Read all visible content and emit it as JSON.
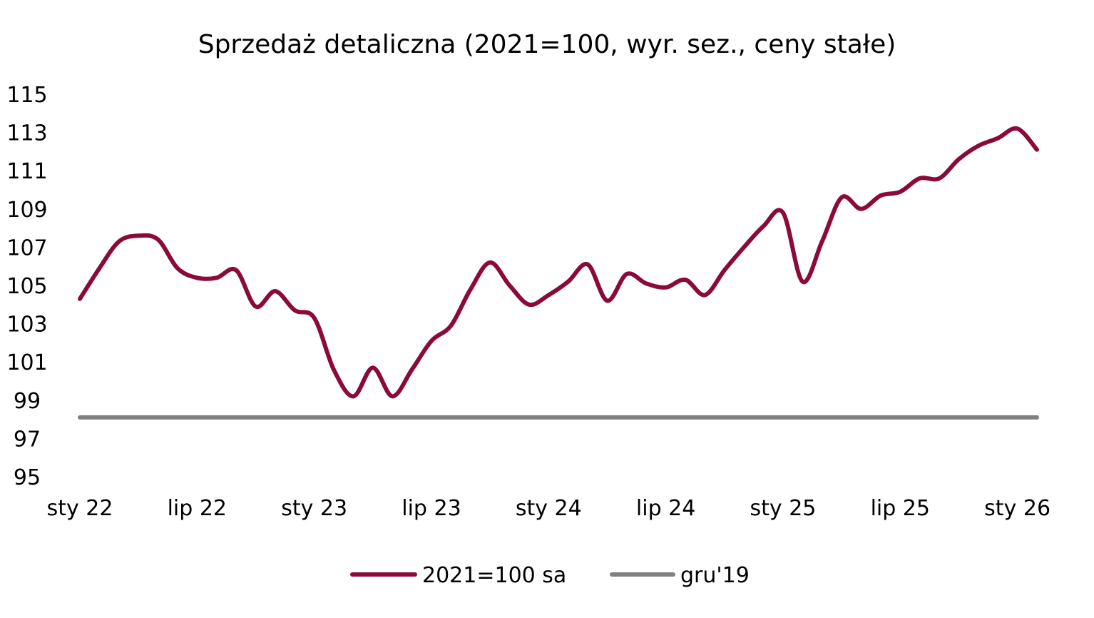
{
  "chart_data": {
    "type": "line",
    "title": "Sprzedaż detaliczna (2021=100, wyr. sez., ceny stałe)",
    "xlabel": "",
    "ylabel": "",
    "ylim": [
      95,
      115
    ],
    "yticks": [
      "115",
      "113",
      "111",
      "109",
      "107",
      "105",
      "103",
      "101",
      "99",
      "97",
      "95"
    ],
    "xticks": [
      "sty 22",
      "lip 22",
      "sty 23",
      "lip 23",
      "sty 24",
      "lip 24",
      "sty 25",
      "lip 25",
      "sty 26"
    ],
    "grid": false,
    "legend_position": "bottom",
    "x": [
      "2022-01",
      "2022-02",
      "2022-03",
      "2022-04",
      "2022-05",
      "2022-06",
      "2022-07",
      "2022-08",
      "2022-09",
      "2022-10",
      "2022-11",
      "2022-12",
      "2023-01",
      "2023-02",
      "2023-03",
      "2023-04",
      "2023-05",
      "2023-06",
      "2023-07",
      "2023-08",
      "2023-09",
      "2023-10",
      "2023-11",
      "2023-12",
      "2024-01",
      "2024-02",
      "2024-03",
      "2024-04",
      "2024-05",
      "2024-06",
      "2024-07",
      "2024-08",
      "2024-09",
      "2024-10",
      "2024-11",
      "2024-12",
      "2025-01",
      "2025-02",
      "2025-03",
      "2025-04",
      "2025-05",
      "2025-06",
      "2025-07",
      "2025-08",
      "2025-09",
      "2025-10",
      "2025-11",
      "2025-12",
      "2026-01",
      "2026-02"
    ],
    "series": [
      {
        "name": "2021=100 sa",
        "color": "#8b0a3c",
        "values": [
          104.3,
          105.9,
          107.3,
          107.6,
          107.4,
          105.9,
          105.4,
          105.4,
          105.8,
          103.9,
          104.7,
          103.7,
          103.3,
          100.6,
          99.2,
          100.7,
          99.2,
          100.6,
          102.1,
          102.9,
          104.8,
          106.2,
          105.0,
          104.0,
          104.5,
          105.2,
          106.1,
          104.2,
          105.6,
          105.1,
          104.9,
          105.3,
          104.5,
          105.8,
          107.0,
          108.1,
          108.8,
          105.2,
          107.3,
          109.6,
          109.0,
          109.7,
          109.9,
          110.6,
          110.6,
          111.6,
          112.3,
          112.7,
          113.2,
          112.1
        ]
      },
      {
        "name": "gru'19",
        "color": "#808080",
        "values": [
          98.1,
          98.1,
          98.1,
          98.1,
          98.1,
          98.1,
          98.1,
          98.1,
          98.1,
          98.1,
          98.1,
          98.1,
          98.1,
          98.1,
          98.1,
          98.1,
          98.1,
          98.1,
          98.1,
          98.1,
          98.1,
          98.1,
          98.1,
          98.1,
          98.1,
          98.1,
          98.1,
          98.1,
          98.1,
          98.1,
          98.1,
          98.1,
          98.1,
          98.1,
          98.1,
          98.1,
          98.1,
          98.1,
          98.1,
          98.1,
          98.1,
          98.1,
          98.1,
          98.1,
          98.1,
          98.1,
          98.1,
          98.1,
          98.1,
          98.1
        ]
      }
    ]
  }
}
